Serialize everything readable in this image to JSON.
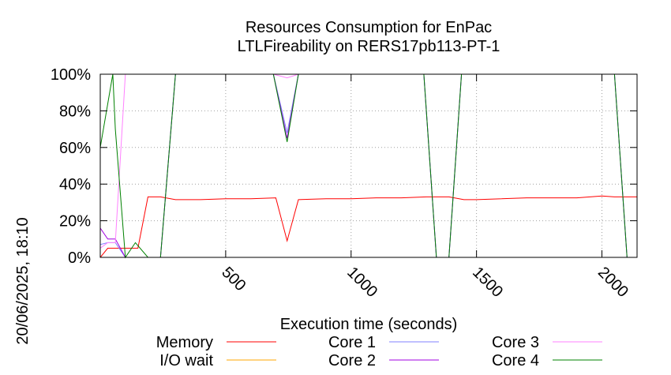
{
  "chart_data": {
    "type": "line",
    "title": "Resources Consumption for EnPac",
    "subtitle": "LTLFireability on RERS17pb113-PT-1",
    "xlabel": "Execution time (seconds)",
    "ylabel": "",
    "side_label": "20/06/2025, 18:10",
    "xlim": [
      0,
      2140
    ],
    "ylim": [
      0,
      100
    ],
    "x_ticks": [
      500,
      1000,
      1500,
      2000
    ],
    "y_ticks": [
      {
        "value": 0,
        "label": "0%"
      },
      {
        "value": 20,
        "label": "20%"
      },
      {
        "value": 40,
        "label": "40%"
      },
      {
        "value": 60,
        "label": "60%"
      },
      {
        "value": 80,
        "label": "80%"
      },
      {
        "value": 100,
        "label": "100%"
      }
    ],
    "grid": true,
    "legend_position": "bottom",
    "series": [
      {
        "name": "Memory",
        "color": "#ff0000",
        "x": [
          0,
          30,
          60,
          100,
          150,
          190,
          240,
          300,
          400,
          500,
          600,
          700,
          745,
          790,
          900,
          1000,
          1100,
          1200,
          1300,
          1390,
          1450,
          1500,
          1700,
          1900,
          2000,
          2050,
          2140
        ],
        "y": [
          0,
          5,
          5,
          5,
          5,
          33,
          33,
          31.5,
          31.5,
          32,
          32,
          32.5,
          9,
          31.5,
          32,
          32,
          32.5,
          32.5,
          33,
          33,
          31.5,
          31.5,
          32.5,
          32.5,
          33.5,
          33,
          33
        ]
      },
      {
        "name": "I/O wait",
        "color": "#ffa500",
        "x": [
          0,
          2140
        ],
        "y": [
          0,
          0
        ]
      },
      {
        "name": "Core 1",
        "color": "#8080ff",
        "x": [
          0,
          30,
          60,
          100,
          140,
          190,
          240,
          300,
          690,
          745,
          790,
          1290,
          1340,
          1390,
          1440,
          2050,
          2100,
          2140
        ],
        "y": [
          7,
          8,
          8,
          0,
          0,
          0,
          0,
          100,
          100,
          68,
          100,
          100,
          0,
          0,
          100,
          100,
          0,
          0
        ]
      },
      {
        "name": "Core 2",
        "color": "#a000e0",
        "x": [
          0,
          30,
          60,
          100,
          140,
          190,
          240,
          300,
          690,
          745,
          790,
          1290,
          1340,
          1390,
          1440,
          2050,
          2100,
          2140
        ],
        "y": [
          16,
          10,
          10,
          0,
          0,
          0,
          0,
          100,
          100,
          65,
          100,
          100,
          0,
          0,
          100,
          100,
          0,
          0
        ]
      },
      {
        "name": "Core 3",
        "color": "#ff80ff",
        "x": [
          0,
          30,
          60,
          100,
          140,
          190,
          240,
          300,
          690,
          745,
          790,
          1290,
          1340,
          1390,
          1440,
          2050,
          2100,
          2140
        ],
        "y": [
          5,
          8,
          8,
          100,
          100,
          100,
          100,
          100,
          100,
          98,
          100,
          100,
          100,
          100,
          100,
          100,
          100,
          100
        ]
      },
      {
        "name": "Core 4",
        "color": "#008000",
        "x": [
          0,
          50,
          60,
          100,
          140,
          190,
          240,
          300,
          690,
          745,
          790,
          1290,
          1340,
          1390,
          1440,
          2050,
          2100,
          2140
        ],
        "y": [
          60,
          100,
          70,
          0,
          8,
          0,
          0,
          100,
          100,
          63,
          100,
          100,
          0,
          0,
          100,
          100,
          0,
          0
        ]
      }
    ]
  }
}
